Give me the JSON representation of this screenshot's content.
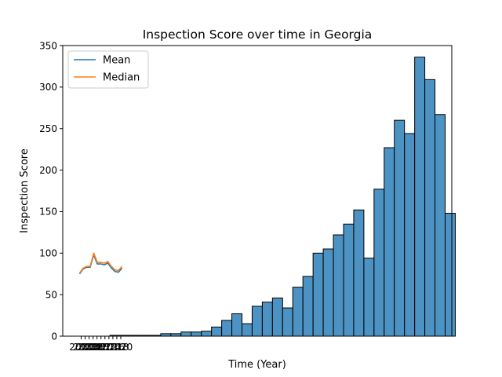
{
  "chart_data": {
    "type": "bar+line",
    "title": "Inspection Score over time in Georgia",
    "xlabel": "Time (Year)",
    "ylabel": "Inspection Score",
    "ylim": [
      0,
      350
    ],
    "y_ticks": [
      0,
      50,
      100,
      150,
      200,
      250,
      300,
      350
    ],
    "x_tick_labels": [
      "2000",
      "2002",
      "2004",
      "2006",
      "2008",
      "2010",
      "2012",
      "2014",
      "2016",
      "2018",
      "2020"
    ],
    "histogram": {
      "color": "#4c92c3",
      "edge_color": "#000000",
      "values": [
        0,
        0,
        0,
        1,
        1,
        1,
        1,
        1,
        3,
        3,
        5,
        5,
        6,
        11,
        19,
        27,
        15,
        36,
        41,
        46,
        34,
        59,
        72,
        100,
        105,
        122,
        135,
        152,
        94,
        177,
        227,
        260,
        244,
        336,
        309,
        267,
        148
      ]
    },
    "series": [
      {
        "name": "Mean",
        "color": "#1f77b4",
        "values": [
          75,
          81,
          83,
          83,
          98,
          87,
          87,
          86,
          88,
          82,
          78,
          77,
          82
        ]
      },
      {
        "name": "Median",
        "color": "#ff7f0e",
        "values": [
          76,
          82,
          84,
          84,
          100,
          89,
          89,
          88,
          90,
          84,
          80,
          79,
          84
        ]
      }
    ],
    "legend_position": "top-left",
    "grid": false
  }
}
